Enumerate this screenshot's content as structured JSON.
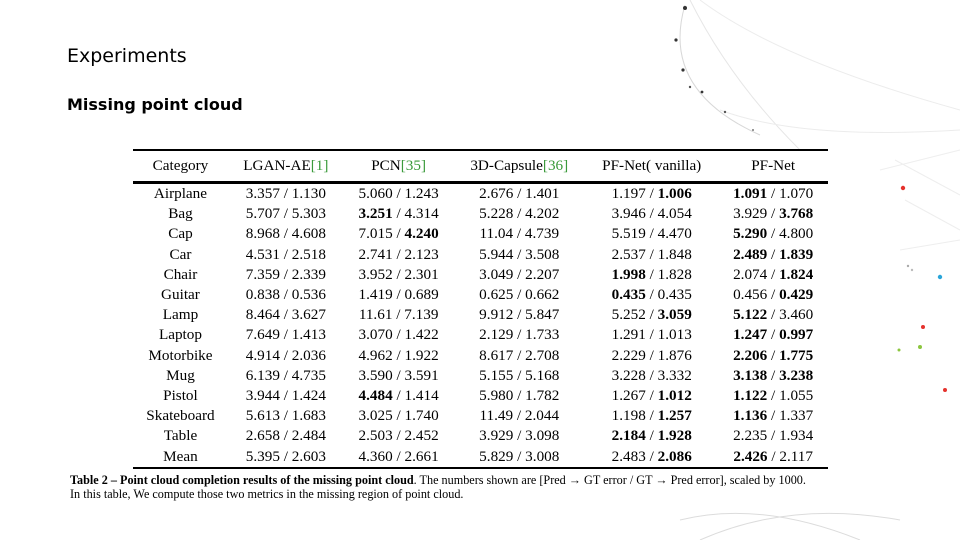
{
  "slide": {
    "title": "Experiments",
    "subtitle": "Missing point cloud"
  },
  "table": {
    "headers": [
      {
        "name": "Category",
        "ref": ""
      },
      {
        "name": "LGAN-AE",
        "ref": "[1]"
      },
      {
        "name": "PCN",
        "ref": "[35]"
      },
      {
        "name": "3D-Capsule",
        "ref": "[36]"
      },
      {
        "name": "PF-Net( vanilla)",
        "ref": ""
      },
      {
        "name": "PF-Net",
        "ref": ""
      }
    ],
    "rows": [
      {
        "category": "Airplane",
        "cells": [
          {
            "a": "3.357",
            "b": "1.130"
          },
          {
            "a": "5.060",
            "b": "1.243"
          },
          {
            "a": "2.676",
            "b": "1.401"
          },
          {
            "a": "1.197",
            "b": "1.006",
            "bb": true
          },
          {
            "a": "1.091",
            "b": "1.070",
            "ba": true
          }
        ]
      },
      {
        "category": "Bag",
        "cells": [
          {
            "a": "5.707",
            "b": "5.303"
          },
          {
            "a": "3.251",
            "b": "4.314",
            "ba": true
          },
          {
            "a": "5.228",
            "b": "4.202"
          },
          {
            "a": "3.946",
            "b": "4.054"
          },
          {
            "a": "3.929",
            "b": "3.768",
            "bb": true
          }
        ]
      },
      {
        "category": "Cap",
        "cells": [
          {
            "a": "8.968",
            "b": "4.608"
          },
          {
            "a": "7.015",
            "b": "4.240",
            "bb": true
          },
          {
            "a": "11.04",
            "b": "4.739"
          },
          {
            "a": "5.519",
            "b": "4.470"
          },
          {
            "a": "5.290",
            "b": "4.800",
            "ba": true
          }
        ]
      },
      {
        "category": "Car",
        "cells": [
          {
            "a": "4.531",
            "b": "2.518"
          },
          {
            "a": "2.741",
            "b": "2.123"
          },
          {
            "a": "5.944",
            "b": "3.508"
          },
          {
            "a": "2.537",
            "b": "1.848"
          },
          {
            "a": "2.489",
            "b": "1.839",
            "ba": true,
            "bb": true
          }
        ]
      },
      {
        "category": "Chair",
        "cells": [
          {
            "a": "7.359",
            "b": "2.339"
          },
          {
            "a": "3.952",
            "b": "2.301"
          },
          {
            "a": "3.049",
            "b": "2.207"
          },
          {
            "a": "1.998",
            "b": "1.828",
            "ba": true
          },
          {
            "a": "2.074",
            "b": "1.824",
            "bb": true
          }
        ]
      },
      {
        "category": "Guitar",
        "cells": [
          {
            "a": "0.838",
            "b": "0.536"
          },
          {
            "a": "1.419",
            "b": "0.689"
          },
          {
            "a": "0.625",
            "b": "0.662"
          },
          {
            "a": "0.435",
            "b": "0.435",
            "ba": true
          },
          {
            "a": "0.456",
            "b": "0.429",
            "bb": true
          }
        ]
      },
      {
        "category": "Lamp",
        "cells": [
          {
            "a": "8.464",
            "b": "3.627"
          },
          {
            "a": "11.61",
            "b": "7.139"
          },
          {
            "a": "9.912",
            "b": "5.847"
          },
          {
            "a": "5.252",
            "b": "3.059",
            "bb": true
          },
          {
            "a": "5.122",
            "b": "3.460",
            "ba": true
          }
        ]
      },
      {
        "category": "Laptop",
        "cells": [
          {
            "a": "7.649",
            "b": "1.413"
          },
          {
            "a": "3.070",
            "b": "1.422"
          },
          {
            "a": "2.129",
            "b": "1.733"
          },
          {
            "a": "1.291",
            "b": "1.013"
          },
          {
            "a": "1.247",
            "b": "0.997",
            "ba": true,
            "bb": true
          }
        ]
      },
      {
        "category": "Motorbike",
        "cells": [
          {
            "a": "4.914",
            "b": "2.036"
          },
          {
            "a": "4.962",
            "b": "1.922"
          },
          {
            "a": "8.617",
            "b": "2.708"
          },
          {
            "a": "2.229",
            "b": "1.876"
          },
          {
            "a": "2.206",
            "b": "1.775",
            "ba": true,
            "bb": true
          }
        ]
      },
      {
        "category": "Mug",
        "cells": [
          {
            "a": "6.139",
            "b": "4.735"
          },
          {
            "a": "3.590",
            "b": "3.591"
          },
          {
            "a": "5.155",
            "b": "5.168"
          },
          {
            "a": "3.228",
            "b": "3.332"
          },
          {
            "a": "3.138",
            "b": "3.238",
            "ba": true,
            "bb": true
          }
        ]
      },
      {
        "category": "Pistol",
        "cells": [
          {
            "a": "3.944",
            "b": "1.424"
          },
          {
            "a": "4.484",
            "b": "1.414",
            "ba": true
          },
          {
            "a": "5.980",
            "b": "1.782"
          },
          {
            "a": "1.267",
            "b": "1.012",
            "bb": true
          },
          {
            "a": "1.122",
            "b": "1.055",
            "ba": true
          }
        ]
      },
      {
        "category": "Skateboard",
        "cells": [
          {
            "a": "5.613",
            "b": "1.683"
          },
          {
            "a": "3.025",
            "b": "1.740"
          },
          {
            "a": "11.49",
            "b": "2.044"
          },
          {
            "a": "1.198",
            "b": "1.257",
            "bb": true
          },
          {
            "a": "1.136",
            "b": "1.337",
            "ba": true
          }
        ]
      },
      {
        "category": "Table",
        "cells": [
          {
            "a": "2.658",
            "b": "2.484"
          },
          {
            "a": "2.503",
            "b": "2.452"
          },
          {
            "a": "3.929",
            "b": "3.098"
          },
          {
            "a": "2.184",
            "b": "1.928",
            "ba": true,
            "bb": true
          },
          {
            "a": "2.235",
            "b": "1.934"
          }
        ]
      },
      {
        "category": "Mean",
        "cells": [
          {
            "a": "5.395",
            "b": "2.603"
          },
          {
            "a": "4.360",
            "b": "2.661"
          },
          {
            "a": "5.829",
            "b": "3.008"
          },
          {
            "a": "2.483",
            "b": "2.086",
            "bb": true
          },
          {
            "a": "2.426",
            "b": "2.117",
            "ba": true
          }
        ]
      }
    ]
  },
  "caption": {
    "lead": "Table 2 – Point cloud completion results of the missing point cloud",
    "rest": ". The numbers shown are [Pred → GT error / GT → Pred error], scaled by 1000.",
    "line2": "In this table, We compute those two metrics in the missing region of point cloud."
  },
  "colors": {
    "dot_red": "#e5322d",
    "dot_green": "#8cc63f",
    "dot_blue": "#2aa5d9",
    "ref_green": "#3a9a3a"
  }
}
